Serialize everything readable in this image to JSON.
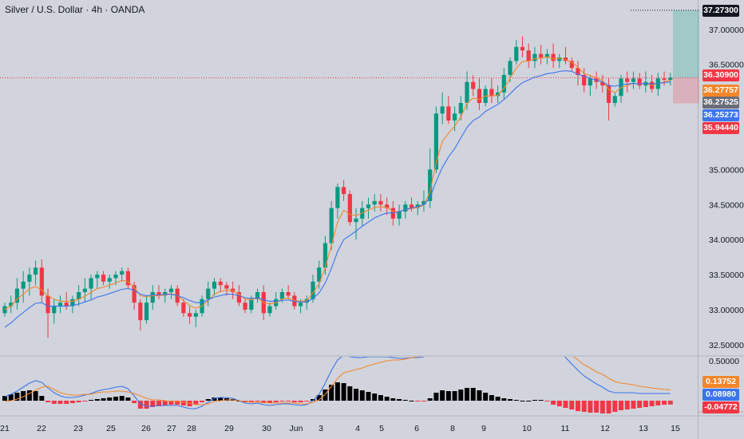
{
  "title": "Silver / U.S. Dollar · 4h · OANDA",
  "colors": {
    "background": "#d1d4dc",
    "up": "#089981",
    "down": "#f23645",
    "ema_fast": "#f5862a",
    "ema_slow": "#3b74ee",
    "macd_line": "#3b74ee",
    "signal_line": "#f5862a",
    "histogram_pos": "#000000",
    "histogram_neg": "#f23645"
  },
  "price_tags": {
    "top": "37.27300",
    "current": "36.30900",
    "ema_fast": "36.27757",
    "grey": "36.27525",
    "ema_slow": "36.25273",
    "stop": "35.94440",
    "macd_signal": "0.13752",
    "macd_line": "0.08980",
    "macd_hist": "-0.04772"
  },
  "chart_data": [
    {
      "type": "candlestick",
      "title": "Silver / U.S. Dollar · 4h · OANDA",
      "x_labels": [
        "21",
        "22",
        "23",
        "25",
        "26",
        "27",
        "28",
        "29",
        "30",
        "Jun",
        "3",
        "4",
        "5",
        "6",
        "8",
        "9",
        "10",
        "11",
        "12",
        "13",
        "15"
      ],
      "y_ticks": [
        "37.00000",
        "36.50000",
        "35.00000",
        "34.50000",
        "34.00000",
        "33.50000",
        "33.00000",
        "32.50000"
      ],
      "ylim": [
        32.35,
        37.42
      ],
      "candles": [
        [
          32.95,
          33.1,
          32.9,
          33.05
        ],
        [
          33.05,
          33.2,
          32.95,
          33.1
        ],
        [
          33.1,
          33.45,
          33.0,
          33.3
        ],
        [
          33.3,
          33.55,
          33.1,
          33.4
        ],
        [
          33.4,
          33.6,
          33.2,
          33.5
        ],
        [
          33.5,
          33.7,
          33.35,
          33.6
        ],
        [
          33.6,
          33.72,
          33.1,
          33.2
        ],
        [
          33.2,
          33.3,
          32.6,
          32.95
        ],
        [
          32.95,
          33.15,
          32.8,
          33.05
        ],
        [
          33.05,
          33.2,
          32.95,
          33.1
        ],
        [
          33.1,
          33.25,
          33.0,
          33.05
        ],
        [
          33.05,
          33.2,
          32.95,
          33.15
        ],
        [
          33.15,
          33.35,
          33.05,
          33.25
        ],
        [
          33.25,
          33.45,
          33.1,
          33.3
        ],
        [
          33.3,
          33.5,
          33.15,
          33.45
        ],
        [
          33.45,
          33.55,
          33.3,
          33.5
        ],
        [
          33.5,
          33.55,
          33.35,
          33.4
        ],
        [
          33.4,
          33.5,
          33.3,
          33.45
        ],
        [
          33.45,
          33.55,
          33.35,
          33.5
        ],
        [
          33.5,
          33.6,
          33.4,
          33.55
        ],
        [
          33.55,
          33.6,
          33.3,
          33.35
        ],
        [
          33.35,
          33.4,
          33.0,
          33.1
        ],
        [
          33.1,
          33.15,
          32.7,
          32.85
        ],
        [
          32.85,
          33.2,
          32.8,
          33.1
        ],
        [
          33.1,
          33.35,
          33.0,
          33.25
        ],
        [
          33.25,
          33.35,
          33.15,
          33.2
        ],
        [
          33.2,
          33.3,
          33.1,
          33.25
        ],
        [
          33.25,
          33.35,
          33.15,
          33.3
        ],
        [
          33.3,
          33.35,
          33.05,
          33.1
        ],
        [
          33.1,
          33.15,
          32.9,
          32.95
        ],
        [
          32.95,
          33.05,
          32.8,
          32.9
        ],
        [
          32.9,
          33.0,
          32.75,
          32.95
        ],
        [
          32.95,
          33.2,
          32.9,
          33.15
        ],
        [
          33.15,
          33.4,
          33.05,
          33.3
        ],
        [
          33.3,
          33.45,
          33.2,
          33.4
        ],
        [
          33.4,
          33.45,
          33.25,
          33.35
        ],
        [
          33.35,
          33.4,
          33.2,
          33.3
        ],
        [
          33.3,
          33.4,
          33.15,
          33.25
        ],
        [
          33.25,
          33.35,
          33.05,
          33.1
        ],
        [
          33.1,
          33.15,
          32.95,
          33.0
        ],
        [
          33.0,
          33.2,
          32.95,
          33.15
        ],
        [
          33.15,
          33.3,
          33.1,
          33.25
        ],
        [
          33.25,
          33.35,
          32.85,
          32.95
        ],
        [
          32.95,
          33.1,
          32.9,
          33.05
        ],
        [
          33.05,
          33.25,
          33.0,
          33.15
        ],
        [
          33.15,
          33.3,
          33.1,
          33.25
        ],
        [
          33.25,
          33.35,
          33.15,
          33.2
        ],
        [
          33.2,
          33.25,
          33.0,
          33.05
        ],
        [
          33.05,
          33.15,
          32.95,
          33.1
        ],
        [
          33.1,
          33.2,
          33.0,
          33.15
        ],
        [
          33.15,
          33.5,
          33.1,
          33.4
        ],
        [
          33.4,
          33.7,
          33.3,
          33.6
        ],
        [
          33.6,
          34.05,
          33.5,
          33.95
        ],
        [
          33.95,
          34.55,
          33.85,
          34.45
        ],
        [
          34.45,
          34.8,
          34.3,
          34.75
        ],
        [
          34.75,
          34.85,
          34.55,
          34.65
        ],
        [
          34.65,
          34.7,
          34.2,
          34.25
        ],
        [
          34.25,
          34.45,
          34.0,
          34.3
        ],
        [
          34.3,
          34.55,
          34.2,
          34.45
        ],
        [
          34.45,
          34.6,
          34.3,
          34.5
        ],
        [
          34.5,
          34.65,
          34.4,
          34.55
        ],
        [
          34.55,
          34.65,
          34.4,
          34.5
        ],
        [
          34.5,
          34.6,
          34.35,
          34.45
        ],
        [
          34.45,
          34.55,
          34.2,
          34.3
        ],
        [
          34.3,
          34.5,
          34.2,
          34.4
        ],
        [
          34.4,
          34.55,
          34.3,
          34.5
        ],
        [
          34.5,
          34.6,
          34.4,
          34.45
        ],
        [
          34.45,
          34.55,
          34.35,
          34.5
        ],
        [
          34.5,
          34.7,
          34.4,
          34.55
        ],
        [
          34.55,
          35.3,
          34.45,
          35.0
        ],
        [
          35.0,
          35.9,
          34.95,
          35.8
        ],
        [
          35.8,
          36.1,
          35.65,
          35.9
        ],
        [
          35.9,
          36.05,
          35.65,
          35.7
        ],
        [
          35.7,
          35.9,
          35.55,
          35.8
        ],
        [
          35.8,
          36.05,
          35.7,
          35.95
        ],
        [
          35.95,
          36.4,
          35.85,
          36.25
        ],
        [
          36.25,
          36.35,
          36.05,
          36.15
        ],
        [
          36.15,
          36.3,
          35.85,
          35.95
        ],
        [
          35.95,
          36.2,
          35.9,
          36.15
        ],
        [
          36.15,
          36.3,
          35.95,
          36.05
        ],
        [
          36.05,
          36.2,
          35.95,
          36.1
        ],
        [
          36.1,
          36.45,
          36.0,
          36.35
        ],
        [
          36.35,
          36.6,
          36.25,
          36.55
        ],
        [
          36.55,
          36.85,
          36.5,
          36.75
        ],
        [
          36.75,
          36.9,
          36.6,
          36.7
        ],
        [
          36.7,
          36.8,
          36.45,
          36.55
        ],
        [
          36.55,
          36.75,
          36.45,
          36.65
        ],
        [
          36.65,
          36.78,
          36.5,
          36.6
        ],
        [
          36.6,
          36.72,
          36.5,
          36.65
        ],
        [
          36.65,
          36.8,
          36.45,
          36.55
        ],
        [
          36.55,
          36.65,
          36.45,
          36.6
        ],
        [
          36.6,
          36.75,
          36.5,
          36.55
        ],
        [
          36.55,
          36.6,
          36.4,
          36.45
        ],
        [
          36.45,
          36.55,
          36.2,
          36.35
        ],
        [
          36.35,
          36.45,
          36.1,
          36.2
        ],
        [
          36.2,
          36.35,
          36.05,
          36.3
        ],
        [
          36.3,
          36.4,
          36.15,
          36.25
        ],
        [
          36.25,
          36.35,
          36.1,
          36.2
        ],
        [
          36.2,
          36.3,
          35.7,
          35.95
        ],
        [
          35.95,
          36.1,
          35.9,
          36.05
        ],
        [
          36.05,
          36.35,
          35.95,
          36.3
        ],
        [
          36.3,
          36.4,
          36.1,
          36.25
        ],
        [
          36.25,
          36.4,
          36.15,
          36.3
        ],
        [
          36.3,
          36.38,
          36.15,
          36.2
        ],
        [
          36.2,
          36.4,
          36.1,
          36.25
        ],
        [
          36.25,
          36.35,
          36.1,
          36.15
        ],
        [
          36.15,
          36.38,
          36.05,
          36.3
        ],
        [
          36.3,
          36.4,
          36.2,
          36.28
        ],
        [
          36.28,
          36.38,
          36.2,
          36.31
        ]
      ],
      "ema_fast": [
        33.0,
        33.05,
        33.15,
        33.22,
        33.3,
        33.33,
        33.28,
        33.2,
        33.15,
        33.12,
        33.12,
        33.12,
        33.15,
        33.19,
        33.25,
        33.3,
        33.32,
        33.35,
        33.38,
        33.42,
        33.4,
        33.32,
        33.2,
        33.18,
        33.2,
        33.2,
        33.21,
        33.23,
        33.2,
        33.13,
        33.06,
        33.02,
        33.05,
        33.13,
        33.22,
        33.26,
        33.28,
        33.27,
        33.22,
        33.15,
        33.14,
        33.17,
        33.1,
        33.08,
        33.1,
        33.15,
        33.17,
        33.13,
        33.12,
        33.13,
        33.24,
        33.37,
        33.6,
        33.92,
        34.25,
        34.42,
        34.36,
        34.34,
        34.38,
        34.42,
        34.46,
        34.47,
        34.46,
        34.4,
        34.4,
        34.43,
        34.44,
        34.46,
        34.49,
        34.68,
        35.1,
        35.4,
        35.52,
        35.62,
        35.75,
        35.95,
        36.02,
        36.0,
        36.05,
        36.05,
        36.06,
        36.16,
        36.3,
        36.45,
        36.54,
        36.55,
        36.58,
        36.59,
        36.61,
        36.58,
        36.59,
        36.57,
        36.53,
        36.46,
        36.37,
        36.34,
        36.31,
        36.27,
        36.14,
        36.1,
        36.17,
        36.2,
        36.23,
        36.22,
        36.23,
        36.2,
        36.23,
        36.25,
        36.278
      ],
      "ema_slow": [
        32.75,
        32.81,
        32.89,
        32.96,
        33.03,
        33.09,
        33.1,
        33.05,
        33.05,
        33.05,
        33.05,
        33.06,
        33.08,
        33.11,
        33.14,
        33.18,
        33.2,
        33.23,
        33.26,
        33.29,
        33.3,
        33.28,
        33.22,
        33.2,
        33.21,
        33.21,
        33.22,
        33.22,
        33.2,
        33.17,
        33.13,
        33.1,
        33.1,
        33.14,
        33.18,
        33.2,
        33.22,
        33.22,
        33.2,
        33.17,
        33.16,
        33.17,
        33.14,
        33.12,
        33.12,
        33.13,
        33.14,
        33.12,
        33.11,
        33.11,
        33.16,
        33.24,
        33.38,
        33.59,
        33.83,
        34.0,
        34.06,
        34.12,
        34.19,
        34.25,
        34.31,
        34.35,
        34.38,
        34.38,
        34.4,
        34.43,
        34.45,
        34.47,
        34.5,
        34.6,
        34.83,
        35.03,
        35.18,
        35.3,
        35.45,
        35.6,
        35.7,
        35.75,
        35.83,
        35.88,
        35.93,
        36.0,
        36.08,
        36.17,
        36.24,
        36.28,
        36.32,
        36.34,
        36.37,
        36.38,
        36.4,
        36.41,
        36.4,
        36.36,
        36.33,
        36.3,
        36.28,
        36.25,
        36.2,
        36.19,
        36.21,
        36.22,
        36.23,
        36.22,
        36.23,
        36.22,
        36.23,
        36.24,
        36.253
      ],
      "stop_level": 35.9444,
      "target_level": 37.273,
      "current_price": 36.309
    },
    {
      "type": "macd",
      "y_ticks": [
        "0.50000"
      ],
      "ylim": [
        -0.18,
        0.55
      ],
      "histogram": [
        0.06,
        0.08,
        0.1,
        0.12,
        0.13,
        0.12,
        0.06,
        -0.02,
        -0.04,
        -0.04,
        -0.04,
        -0.03,
        -0.02,
        -0.01,
        0.01,
        0.02,
        0.03,
        0.04,
        0.05,
        0.06,
        0.04,
        -0.03,
        -0.1,
        -0.1,
        -0.08,
        -0.07,
        -0.06,
        -0.05,
        -0.05,
        -0.06,
        -0.07,
        -0.05,
        -0.02,
        0.02,
        0.04,
        0.04,
        0.03,
        0.02,
        0.0,
        -0.02,
        -0.02,
        -0.01,
        -0.03,
        -0.03,
        -0.02,
        -0.01,
        -0.01,
        -0.02,
        -0.02,
        -0.01,
        0.02,
        0.07,
        0.14,
        0.2,
        0.23,
        0.22,
        0.18,
        0.15,
        0.13,
        0.11,
        0.09,
        0.07,
        0.05,
        0.03,
        0.02,
        0.01,
        0.0,
        -0.01,
        -0.01,
        0.03,
        0.1,
        0.13,
        0.12,
        0.12,
        0.14,
        0.16,
        0.16,
        0.13,
        0.1,
        0.07,
        0.05,
        0.03,
        0.02,
        0.01,
        0.0,
        0.0,
        0.01,
        0.01,
        -0.01,
        -0.05,
        -0.07,
        -0.09,
        -0.11,
        -0.13,
        -0.14,
        -0.15,
        -0.15,
        -0.16,
        -0.16,
        -0.14,
        -0.12,
        -0.11,
        -0.1,
        -0.09,
        -0.08,
        -0.07,
        -0.06,
        -0.05,
        -0.048
      ],
      "macd_line": [
        0.05,
        0.08,
        0.12,
        0.17,
        0.22,
        0.25,
        0.23,
        0.16,
        0.1,
        0.06,
        0.04,
        0.04,
        0.05,
        0.07,
        0.09,
        0.12,
        0.14,
        0.15,
        0.17,
        0.18,
        0.15,
        0.06,
        -0.04,
        -0.07,
        -0.07,
        -0.06,
        -0.06,
        -0.06,
        -0.06,
        -0.08,
        -0.1,
        -0.1,
        -0.07,
        -0.02,
        0.03,
        0.04,
        0.04,
        0.03,
        0.0,
        -0.03,
        -0.04,
        -0.03,
        -0.05,
        -0.06,
        -0.05,
        -0.04,
        -0.04,
        -0.05,
        -0.06,
        -0.05,
        0.0,
        0.08,
        0.22,
        0.38,
        0.51,
        0.57,
        0.55,
        0.54,
        0.54,
        0.55,
        0.55,
        0.55,
        0.55,
        0.54,
        0.53,
        0.53,
        0.54,
        0.54,
        0.55,
        0.6,
        0.74,
        0.86,
        0.92,
        0.96,
        1.02,
        1.08,
        1.1,
        1.06,
        1.03,
        1.0,
        0.98,
        0.96,
        0.96,
        0.98,
        0.96,
        0.92,
        0.9,
        0.86,
        0.8,
        0.7,
        0.62,
        0.54,
        0.46,
        0.38,
        0.31,
        0.26,
        0.21,
        0.17,
        0.12,
        0.1,
        0.1,
        0.1,
        0.1,
        0.09,
        0.09,
        0.09,
        0.09,
        0.09,
        0.0898
      ],
      "signal_line": [
        -0.01,
        0.0,
        0.02,
        0.05,
        0.09,
        0.13,
        0.17,
        0.18,
        0.14,
        0.1,
        0.08,
        0.07,
        0.07,
        0.08,
        0.08,
        0.1,
        0.11,
        0.11,
        0.12,
        0.12,
        0.11,
        0.09,
        0.06,
        0.03,
        0.01,
        0.01,
        0.0,
        -0.01,
        -0.01,
        -0.02,
        -0.03,
        -0.05,
        -0.05,
        -0.04,
        -0.01,
        0.0,
        0.01,
        0.01,
        0.0,
        -0.01,
        -0.02,
        -0.02,
        -0.02,
        -0.03,
        -0.03,
        -0.03,
        -0.03,
        -0.03,
        -0.04,
        -0.04,
        -0.02,
        0.01,
        0.08,
        0.18,
        0.28,
        0.35,
        0.37,
        0.39,
        0.41,
        0.44,
        0.46,
        0.48,
        0.5,
        0.51,
        0.51,
        0.52,
        0.54,
        0.55,
        0.56,
        0.57,
        0.64,
        0.73,
        0.8,
        0.84,
        0.88,
        0.92,
        0.94,
        0.93,
        0.93,
        0.93,
        0.93,
        0.93,
        0.94,
        0.97,
        0.96,
        0.92,
        0.89,
        0.85,
        0.81,
        0.75,
        0.69,
        0.63,
        0.57,
        0.51,
        0.45,
        0.41,
        0.36,
        0.33,
        0.28,
        0.24,
        0.22,
        0.21,
        0.2,
        0.18,
        0.17,
        0.16,
        0.15,
        0.14,
        0.1375
      ]
    }
  ]
}
